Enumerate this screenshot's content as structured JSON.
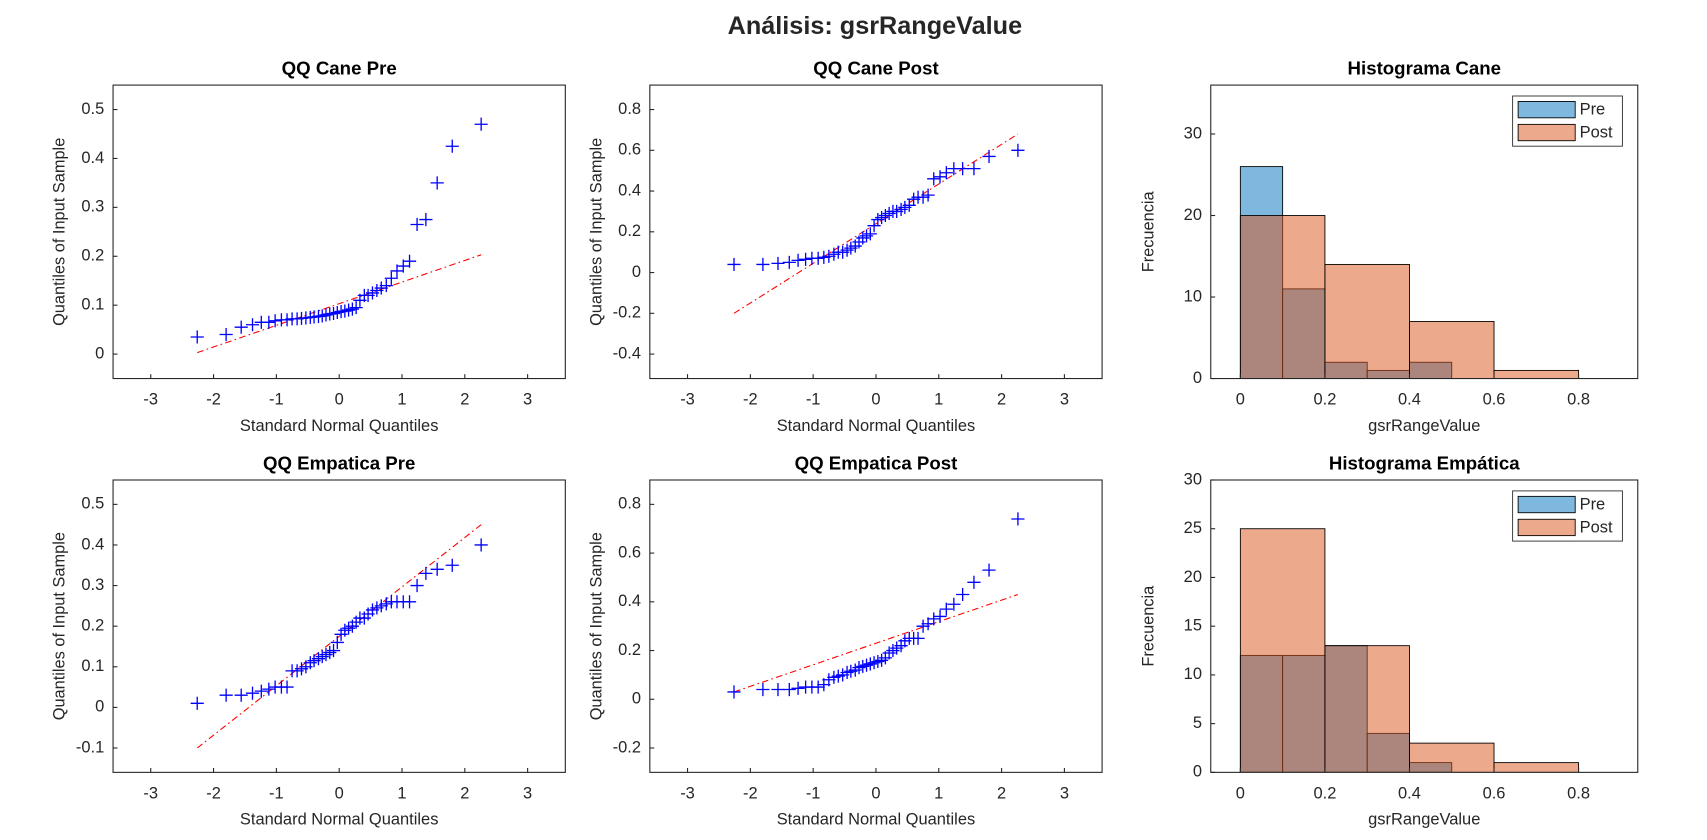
{
  "title": "Análisis: gsrRangeValue",
  "chart_data": [
    {
      "type": "qq",
      "title": "QQ Cane Pre",
      "xlabel": "Standard Normal Quantiles",
      "ylabel": "Quantiles of Input Sample",
      "xlim": [
        -3.6,
        3.6
      ],
      "xticks": [
        -3,
        -2,
        -1,
        0,
        1,
        2,
        3
      ],
      "ylim": [
        -0.05,
        0.55
      ],
      "yticks": [
        0,
        0.1,
        0.2,
        0.3,
        0.4,
        0.5
      ],
      "color": "#0000ff",
      "x": [
        -2.26,
        -1.8,
        -1.56,
        -1.38,
        -1.24,
        -1.12,
        -1.02,
        -0.92,
        -0.83,
        -0.75,
        -0.67,
        -0.6,
        -0.53,
        -0.46,
        -0.4,
        -0.33,
        -0.27,
        -0.21,
        -0.15,
        -0.09,
        -0.03,
        0.03,
        0.09,
        0.15,
        0.21,
        0.27,
        0.33,
        0.4,
        0.46,
        0.53,
        0.6,
        0.67,
        0.75,
        0.83,
        0.92,
        1.02,
        1.12,
        1.24,
        1.38,
        1.56,
        1.8,
        2.26
      ],
      "values": [
        0.035,
        0.04,
        0.055,
        0.06,
        0.065,
        0.065,
        0.068,
        0.07,
        0.07,
        0.072,
        0.072,
        0.073,
        0.074,
        0.075,
        0.076,
        0.077,
        0.078,
        0.08,
        0.082,
        0.083,
        0.085,
        0.087,
        0.088,
        0.09,
        0.092,
        0.095,
        0.11,
        0.12,
        0.12,
        0.125,
        0.13,
        0.135,
        0.14,
        0.155,
        0.17,
        0.18,
        0.19,
        0.265,
        0.275,
        0.35,
        0.425,
        0.47
      ],
      "ref_line": {
        "x": [
          -2.26,
          2.26
        ],
        "y": [
          0.003,
          0.203
        ],
        "color": "#ff0000"
      }
    },
    {
      "type": "qq",
      "title": "QQ Cane Post",
      "xlabel": "Standard Normal Quantiles",
      "ylabel": "Quantiles of Input Sample",
      "xlim": [
        -3.6,
        3.6
      ],
      "xticks": [
        -3,
        -2,
        -1,
        0,
        1,
        2,
        3
      ],
      "ylim": [
        -0.52,
        0.92
      ],
      "yticks": [
        -0.4,
        -0.2,
        0,
        0.2,
        0.4,
        0.6,
        0.8
      ],
      "color": "#0000ff",
      "x": [
        -2.26,
        -1.8,
        -1.56,
        -1.38,
        -1.24,
        -1.12,
        -1.02,
        -0.92,
        -0.83,
        -0.75,
        -0.67,
        -0.6,
        -0.53,
        -0.46,
        -0.4,
        -0.33,
        -0.27,
        -0.21,
        -0.15,
        -0.09,
        -0.03,
        0.03,
        0.09,
        0.15,
        0.21,
        0.27,
        0.33,
        0.4,
        0.46,
        0.53,
        0.6,
        0.67,
        0.75,
        0.83,
        0.92,
        1.02,
        1.12,
        1.24,
        1.38,
        1.56,
        1.8,
        2.26
      ],
      "values": [
        0.04,
        0.04,
        0.045,
        0.05,
        0.06,
        0.065,
        0.07,
        0.07,
        0.075,
        0.08,
        0.09,
        0.1,
        0.1,
        0.11,
        0.12,
        0.13,
        0.15,
        0.17,
        0.18,
        0.19,
        0.23,
        0.26,
        0.27,
        0.28,
        0.29,
        0.3,
        0.3,
        0.31,
        0.32,
        0.33,
        0.36,
        0.37,
        0.37,
        0.38,
        0.46,
        0.47,
        0.49,
        0.51,
        0.51,
        0.51,
        0.57,
        0.6
      ],
      "ref_line": {
        "x": [
          -2.26,
          2.26
        ],
        "y": [
          -0.2,
          0.68
        ],
        "color": "#ff0000"
      }
    },
    {
      "type": "histogram",
      "title": "Histograma Cane",
      "xlabel": "gsrRangeValue",
      "ylabel": "Frecuencia",
      "xlim": [
        -0.07,
        0.94
      ],
      "xticks": [
        0,
        0.2,
        0.4,
        0.6,
        0.8
      ],
      "ylim": [
        0,
        36
      ],
      "yticks": [
        0,
        10,
        20,
        30
      ],
      "alpha": 0.5,
      "legend": "northeast",
      "series": [
        {
          "name": "Pre",
          "color": "#0072bd",
          "bins": [
            0,
            0.1,
            0.2,
            0.3,
            0.4,
            0.5
          ],
          "values": [
            26,
            11,
            2,
            1,
            2
          ]
        },
        {
          "name": "Post",
          "color": "#d95319",
          "bins": [
            0,
            0.2,
            0.4,
            0.6,
            0.8
          ],
          "values": [
            20,
            14,
            7,
            1
          ]
        }
      ]
    },
    {
      "type": "qq",
      "title": "QQ Empatica Pre",
      "xlabel": "Standard Normal Quantiles",
      "ylabel": "Quantiles of Input Sample",
      "xlim": [
        -3.6,
        3.6
      ],
      "xticks": [
        -3,
        -2,
        -1,
        0,
        1,
        2,
        3
      ],
      "ylim": [
        -0.16,
        0.56
      ],
      "yticks": [
        -0.1,
        0,
        0.1,
        0.2,
        0.3,
        0.4,
        0.5
      ],
      "color": "#0000ff",
      "x": [
        -2.26,
        -1.8,
        -1.56,
        -1.38,
        -1.24,
        -1.12,
        -1.02,
        -0.92,
        -0.83,
        -0.75,
        -0.67,
        -0.6,
        -0.53,
        -0.46,
        -0.4,
        -0.33,
        -0.27,
        -0.21,
        -0.15,
        -0.09,
        -0.03,
        0.03,
        0.09,
        0.15,
        0.21,
        0.27,
        0.33,
        0.4,
        0.46,
        0.53,
        0.6,
        0.67,
        0.75,
        0.83,
        0.92,
        1.02,
        1.12,
        1.24,
        1.38,
        1.56,
        1.8,
        2.26
      ],
      "values": [
        0.01,
        0.03,
        0.03,
        0.035,
        0.04,
        0.045,
        0.05,
        0.05,
        0.05,
        0.09,
        0.09,
        0.095,
        0.1,
        0.11,
        0.115,
        0.12,
        0.125,
        0.13,
        0.135,
        0.14,
        0.16,
        0.18,
        0.19,
        0.195,
        0.2,
        0.21,
        0.22,
        0.22,
        0.23,
        0.24,
        0.245,
        0.25,
        0.255,
        0.26,
        0.26,
        0.26,
        0.26,
        0.3,
        0.33,
        0.34,
        0.35,
        0.4
      ],
      "ref_line": {
        "x": [
          -2.26,
          2.26
        ],
        "y": [
          -0.1,
          0.45
        ],
        "color": "#ff0000"
      }
    },
    {
      "type": "qq",
      "title": "QQ Empatica Post",
      "xlabel": "Standard Normal Quantiles",
      "ylabel": "Quantiles of Input Sample",
      "xlim": [
        -3.6,
        3.6
      ],
      "xticks": [
        -3,
        -2,
        -1,
        0,
        1,
        2,
        3
      ],
      "ylim": [
        -0.3,
        0.9
      ],
      "yticks": [
        -0.2,
        0,
        0.2,
        0.4,
        0.6,
        0.8
      ],
      "color": "#0000ff",
      "x": [
        -2.26,
        -1.8,
        -1.56,
        -1.38,
        -1.24,
        -1.12,
        -1.02,
        -0.92,
        -0.83,
        -0.75,
        -0.67,
        -0.6,
        -0.53,
        -0.46,
        -0.4,
        -0.33,
        -0.27,
        -0.21,
        -0.15,
        -0.09,
        -0.03,
        0.03,
        0.09,
        0.15,
        0.21,
        0.27,
        0.33,
        0.4,
        0.46,
        0.53,
        0.6,
        0.67,
        0.75,
        0.83,
        0.92,
        1.02,
        1.12,
        1.24,
        1.38,
        1.56,
        1.8,
        2.26
      ],
      "values": [
        0.03,
        0.04,
        0.04,
        0.04,
        0.045,
        0.05,
        0.05,
        0.05,
        0.06,
        0.08,
        0.09,
        0.095,
        0.1,
        0.11,
        0.115,
        0.12,
        0.13,
        0.135,
        0.14,
        0.145,
        0.15,
        0.155,
        0.16,
        0.17,
        0.19,
        0.2,
        0.21,
        0.22,
        0.24,
        0.25,
        0.25,
        0.25,
        0.3,
        0.31,
        0.33,
        0.34,
        0.37,
        0.39,
        0.43,
        0.48,
        0.53,
        0.74
      ],
      "ref_line": {
        "x": [
          -2.26,
          2.26
        ],
        "y": [
          0.03,
          0.43
        ],
        "color": "#ff0000"
      }
    },
    {
      "type": "histogram",
      "title": "Histograma Empática",
      "xlabel": "gsrRangeValue",
      "ylabel": "Frecuencia",
      "xlim": [
        -0.07,
        0.94
      ],
      "xticks": [
        0,
        0.2,
        0.4,
        0.6,
        0.8
      ],
      "ylim": [
        0,
        30
      ],
      "yticks": [
        0,
        5,
        10,
        15,
        20,
        25,
        30
      ],
      "alpha": 0.5,
      "legend": "northeast",
      "series": [
        {
          "name": "Pre",
          "color": "#0072bd",
          "bins": [
            0,
            0.1,
            0.2,
            0.3,
            0.4,
            0.5
          ],
          "values": [
            12,
            12,
            13,
            4,
            1
          ]
        },
        {
          "name": "Post",
          "color": "#d95319",
          "bins": [
            0,
            0.2,
            0.4,
            0.6,
            0.8
          ],
          "values": [
            25,
            13,
            3,
            1
          ]
        }
      ]
    }
  ]
}
